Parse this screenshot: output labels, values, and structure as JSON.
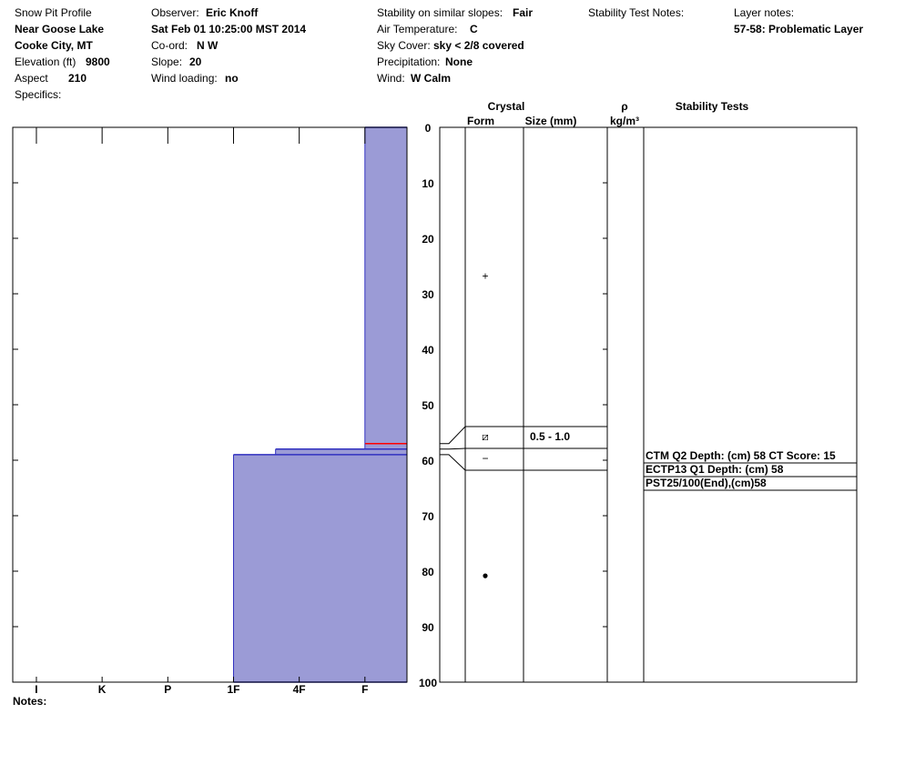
{
  "header": {
    "title": "Snow Pit Profile",
    "location": "Near Goose Lake",
    "region": "Cooke City, MT",
    "elevation": {
      "label": "Elevation (ft)",
      "value": 9800
    },
    "aspect": {
      "label": "Aspect",
      "value": 210
    },
    "specifics": "Specifics:",
    "observer": {
      "label": "Observer:",
      "value": "Eric Knoff"
    },
    "date": "Sat Feb 01 10:25:00 MST 2014",
    "coord": {
      "label": "Co-ord:",
      "value": "N  W"
    },
    "slope": {
      "label": "Slope:",
      "value": 20
    },
    "wind_loading": {
      "label": "Wind loading:",
      "value": "no"
    },
    "stability": {
      "label": "Stability on similar slopes:",
      "value": "Fair"
    },
    "air_temp": {
      "label": "Air Temperature:",
      "value": "C"
    },
    "sky": {
      "label": "Sky Cover:",
      "value": "sky < 2/8 covered"
    },
    "precip": {
      "label": "Precipitation:",
      "value": "None"
    },
    "wind": {
      "label": "Wind:",
      "value": "W Calm"
    },
    "test_notes": "Stability Test Notes:",
    "layer_notes": {
      "label": "Layer notes:",
      "value": "57-58: Problematic Layer"
    },
    "notes": "Notes:"
  },
  "chart_data": {
    "type": "snow-profile",
    "ylim": [
      0,
      100
    ],
    "yticks": [
      0,
      10,
      20,
      30,
      40,
      50,
      60,
      70,
      80,
      90,
      100
    ],
    "xlim": [
      6.36,
      0.36
    ],
    "xticks": [
      {
        "value": 6,
        "label": "I"
      },
      {
        "value": 5,
        "label": "K"
      },
      {
        "value": 4,
        "label": "P"
      },
      {
        "value": 3,
        "label": "1F"
      },
      {
        "value": 2,
        "label": "4F"
      },
      {
        "value": 1,
        "label": "F"
      }
    ],
    "color": "#9b9bd6",
    "edge_colors": [
      "#3030c0",
      "#ff0000",
      "#3030c0",
      "#3030c0"
    ],
    "layers": {
      "top": [
        0,
        57,
        58,
        59
      ],
      "bottom": [
        57,
        58,
        59,
        100
      ],
      "hardness": [
        1,
        1,
        2.36,
        3
      ],
      "grain_forms": [
        "+",
        "⧄",
        "−",
        "●"
      ],
      "grain_sizes": [
        null,
        "0.5 - 1.0",
        null,
        null
      ]
    },
    "table_headers": {
      "crystal": "Crystal",
      "form": "Form",
      "size": "Size (mm)",
      "rho": "ρ",
      "density_unit": "kg/m³",
      "stability": "Stability Tests"
    },
    "stability_tests": [
      "CTM Q2 Depth: (cm) 58 CT Score: 15",
      "ECTP13 Q1 Depth: (cm) 58",
      "PST25/100(End),(cm)58"
    ]
  }
}
